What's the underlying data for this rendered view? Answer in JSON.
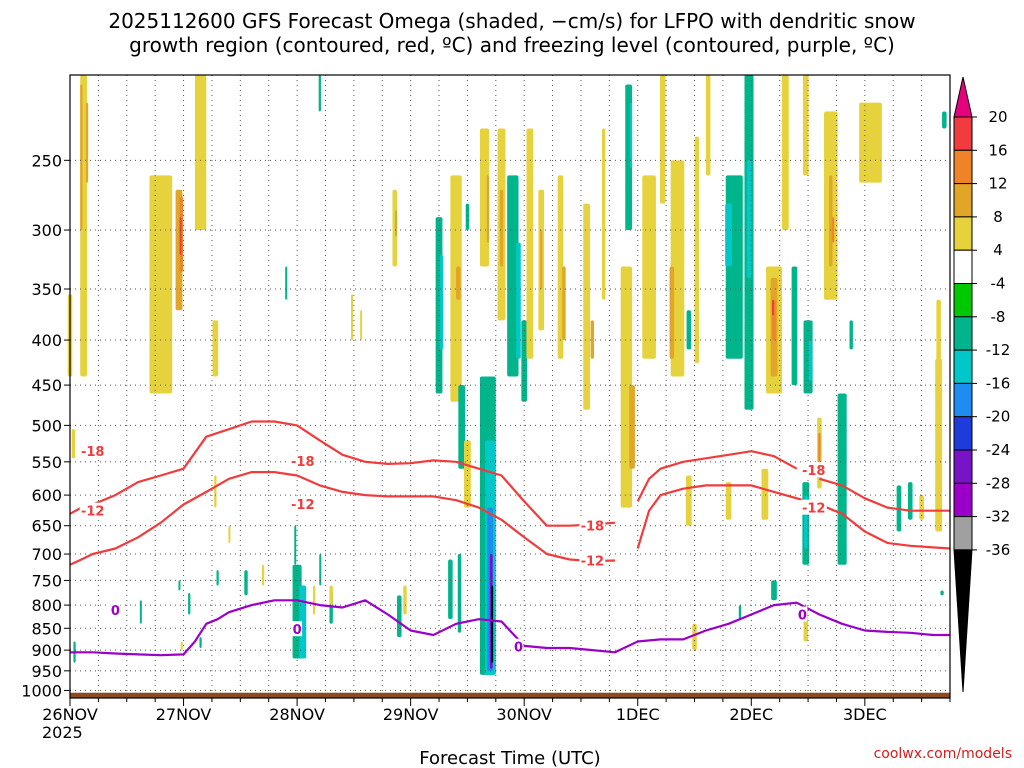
{
  "chart_data": {
    "type": "heatmap",
    "title_line1": "2025112600 GFS Forecast Omega (shaded, −cm/s) for LFPO with dendritic snow",
    "title_line2": "growth region (contoured, red, ºC) and freezing level (contoured, purple, ºC)",
    "xlabel": "Forecast Time (UTC)",
    "x_ticks": [
      "26NOV",
      "27NOV",
      "28NOV",
      "29NOV",
      "30NOV",
      "1DEC",
      "2DEC",
      "3DEC"
    ],
    "x_year_label": "2025",
    "x_range_days": [
      0,
      7.75
    ],
    "y_ticks": [
      250,
      300,
      350,
      400,
      450,
      500,
      550,
      600,
      650,
      700,
      750,
      800,
      850,
      900,
      950,
      1000
    ],
    "y_range_hpa": [
      1020,
      200
    ],
    "colorbar": {
      "labels": [
        "20",
        "16",
        "12",
        "8",
        "4",
        "-4",
        "-8",
        "-12",
        "-16",
        "-20",
        "-24",
        "-28",
        "-32",
        "-36"
      ],
      "levels": [
        20,
        16,
        12,
        8,
        4,
        -4,
        -8,
        -12,
        -16,
        -20,
        -24,
        -28,
        -32,
        -36
      ],
      "colors": [
        "#e6007e",
        "#f03c3c",
        "#f08228",
        "#e1a528",
        "#e6d23c",
        "#ffffff",
        "#00c800",
        "#00b48c",
        "#00c8c8",
        "#1e8cf0",
        "#1e3cdc",
        "#7814c8",
        "#9b00c8",
        "#a0a0a0",
        "#000000"
      ]
    },
    "series": [
      {
        "name": "-18",
        "color": "#f03c3c",
        "x": [
          0,
          0.1,
          0.2,
          0.4,
          0.6,
          0.8,
          1.0,
          1.2,
          1.4,
          1.6,
          1.8,
          2.0,
          2.2,
          2.4,
          2.6,
          2.8,
          3.0,
          3.2,
          3.4,
          3.6,
          3.8,
          4.0,
          4.2,
          4.4,
          4.6,
          4.8
        ],
        "y": [
          630,
          620,
          615,
          600,
          580,
          570,
          560,
          515,
          505,
          495,
          495,
          500,
          520,
          540,
          550,
          553,
          552,
          548,
          550,
          560,
          570,
          610,
          650,
          650,
          648,
          645
        ]
      },
      {
        "name": "-18",
        "color": "#f03c3c",
        "x": [
          5.0,
          5.1,
          5.2,
          5.4,
          5.6,
          5.8,
          6.0,
          6.2,
          6.4
        ],
        "y": [
          610,
          575,
          560,
          550,
          545,
          540,
          535,
          542,
          560
        ]
      },
      {
        "name": "-18",
        "color": "#f03c3c",
        "x": [
          6.6,
          6.8,
          7.0,
          7.2,
          7.4,
          7.6,
          7.75
        ],
        "y": [
          575,
          585,
          605,
          620,
          625,
          625,
          625
        ]
      },
      {
        "name": "-12",
        "color": "#f03c3c",
        "x": [
          0,
          0.1,
          0.2,
          0.4,
          0.6,
          0.8,
          1.0,
          1.2,
          1.4,
          1.6,
          1.8,
          2.0,
          2.2,
          2.4,
          2.6,
          2.8,
          3.0,
          3.2,
          3.4,
          3.6,
          3.8,
          4.0,
          4.2,
          4.4,
          4.6,
          4.8
        ],
        "y": [
          720,
          710,
          700,
          690,
          670,
          645,
          615,
          595,
          575,
          565,
          565,
          570,
          585,
          595,
          600,
          602,
          602,
          602,
          608,
          620,
          640,
          670,
          700,
          710,
          713,
          712
        ]
      },
      {
        "name": "-12",
        "color": "#f03c3c",
        "x": [
          5.0,
          5.1,
          5.2,
          5.4,
          5.6,
          5.8,
          6.0,
          6.2,
          6.4,
          6.6,
          6.8,
          7.0,
          7.2,
          7.4,
          7.6,
          7.75
        ],
        "y": [
          690,
          625,
          600,
          590,
          585,
          585,
          585,
          595,
          605,
          615,
          630,
          660,
          680,
          685,
          688,
          690
        ]
      },
      {
        "name": "0",
        "color": "#9b00c8",
        "x": [
          0,
          0.2,
          0.4,
          0.6,
          0.8,
          1.0,
          1.1,
          1.2,
          1.3,
          1.4,
          1.6,
          1.8,
          2.0,
          2.2,
          2.4,
          2.6,
          2.8,
          3.0,
          3.2,
          3.4,
          3.6,
          3.8,
          4.0,
          4.2,
          4.4,
          4.6,
          4.8,
          5.0,
          5.2,
          5.4,
          5.6,
          5.8,
          6.0,
          6.2,
          6.4,
          6.6,
          6.8,
          7.0,
          7.2,
          7.4,
          7.6,
          7.75
        ],
        "y": [
          905,
          905,
          908,
          910,
          912,
          910,
          880,
          840,
          830,
          815,
          800,
          790,
          790,
          800,
          805,
          790,
          820,
          855,
          865,
          840,
          830,
          835,
          890,
          895,
          895,
          900,
          905,
          880,
          875,
          875,
          855,
          840,
          820,
          800,
          795,
          820,
          840,
          855,
          858,
          860,
          865,
          865
        ]
      }
    ],
    "contour_labels": [
      {
        "text": "-18",
        "x": 0.2,
        "y": 535
      },
      {
        "text": "-18",
        "x": 2.05,
        "y": 549
      },
      {
        "text": "-18",
        "x": 4.6,
        "y": 650
      },
      {
        "text": "-18",
        "x": 6.55,
        "y": 562
      },
      {
        "text": "-12",
        "x": 0.2,
        "y": 625
      },
      {
        "text": "-12",
        "x": 2.05,
        "y": 614
      },
      {
        "text": "-12",
        "x": 4.6,
        "y": 712
      },
      {
        "text": "-12",
        "x": 6.55,
        "y": 620
      },
      {
        "text": "0",
        "x": 0.4,
        "y": 810
      },
      {
        "text": "0",
        "x": 2.0,
        "y": 852
      },
      {
        "text": "0",
        "x": 3.95,
        "y": 892
      },
      {
        "text": "0",
        "x": 6.45,
        "y": 820
      }
    ],
    "omega_blobs": [
      {
        "x": 0.12,
        "y0": 200,
        "y1": 440,
        "w": 0.06,
        "level": 4
      },
      {
        "x": 0.0,
        "y0": 355,
        "y1": 440,
        "w": 0.04,
        "level": 4
      },
      {
        "x": 0.03,
        "y0": 505,
        "y1": 545,
        "w": 0.03,
        "level": 4
      },
      {
        "x": 0.1,
        "y0": 205,
        "y1": 300,
        "w": 0.02,
        "level": 8
      },
      {
        "x": 0.15,
        "y0": 215,
        "y1": 265,
        "w": 0.02,
        "level": 8
      },
      {
        "x": 0.8,
        "y0": 260,
        "y1": 460,
        "w": 0.2,
        "level": 4
      },
      {
        "x": 0.96,
        "y0": 270,
        "y1": 370,
        "w": 0.06,
        "level": 8
      },
      {
        "x": 0.98,
        "y0": 275,
        "y1": 335,
        "w": 0.03,
        "level": 12
      },
      {
        "x": 0.97,
        "y0": 290,
        "y1": 320,
        "w": 0.01,
        "level": 16
      },
      {
        "x": 1.15,
        "y0": 200,
        "y1": 300,
        "w": 0.1,
        "level": 4
      },
      {
        "x": 1.28,
        "y0": 380,
        "y1": 440,
        "w": 0.05,
        "level": 4
      },
      {
        "x": 1.28,
        "y0": 570,
        "y1": 620,
        "w": 0.02,
        "level": 4
      },
      {
        "x": 1.3,
        "y0": 730,
        "y1": 760,
        "w": 0.02,
        "level": -8
      },
      {
        "x": 1.4,
        "y0": 650,
        "y1": 680,
        "w": 0.01,
        "level": 4
      },
      {
        "x": 1.55,
        "y0": 730,
        "y1": 780,
        "w": 0.03,
        "level": -8
      },
      {
        "x": 1.7,
        "y0": 720,
        "y1": 760,
        "w": 0.02,
        "level": 4
      },
      {
        "x": 2.0,
        "y0": 720,
        "y1": 920,
        "w": 0.08,
        "level": -8
      },
      {
        "x": 2.05,
        "y0": 760,
        "y1": 920,
        "w": 0.06,
        "level": -12
      },
      {
        "x": 1.98,
        "y0": 650,
        "y1": 720,
        "w": 0.01,
        "level": -8
      },
      {
        "x": 2.15,
        "y0": 760,
        "y1": 820,
        "w": 0.02,
        "level": 4
      },
      {
        "x": 2.2,
        "y0": 700,
        "y1": 760,
        "w": 0.01,
        "level": -8
      },
      {
        "x": 2.3,
        "y0": 770,
        "y1": 840,
        "w": 0.03,
        "level": -8
      },
      {
        "x": 2.3,
        "y0": 760,
        "y1": 800,
        "w": 0.03,
        "level": 4
      },
      {
        "x": 2.86,
        "y0": 270,
        "y1": 330,
        "w": 0.04,
        "level": 4
      },
      {
        "x": 2.87,
        "y0": 285,
        "y1": 305,
        "w": 0.015,
        "level": 8
      },
      {
        "x": 2.9,
        "y0": 780,
        "y1": 870,
        "w": 0.04,
        "level": -8
      },
      {
        "x": 2.95,
        "y0": 760,
        "y1": 820,
        "w": 0.03,
        "level": 4
      },
      {
        "x": 3.25,
        "y0": 290,
        "y1": 460,
        "w": 0.06,
        "level": -8
      },
      {
        "x": 3.27,
        "y0": 320,
        "y1": 410,
        "w": 0.03,
        "level": -12
      },
      {
        "x": 3.4,
        "y0": 260,
        "y1": 470,
        "w": 0.1,
        "level": 4
      },
      {
        "x": 3.42,
        "y0": 330,
        "y1": 360,
        "w": 0.04,
        "level": 8
      },
      {
        "x": 3.45,
        "y0": 450,
        "y1": 560,
        "w": 0.06,
        "level": -8
      },
      {
        "x": 3.5,
        "y0": 520,
        "y1": 620,
        "w": 0.06,
        "level": 4
      },
      {
        "x": 3.5,
        "y0": 280,
        "y1": 300,
        "w": 0.03,
        "level": -8
      },
      {
        "x": 3.35,
        "y0": 710,
        "y1": 830,
        "w": 0.04,
        "level": -8
      },
      {
        "x": 3.43,
        "y0": 700,
        "y1": 860,
        "w": 0.03,
        "level": -8
      },
      {
        "x": 3.65,
        "y0": 230,
        "y1": 330,
        "w": 0.08,
        "level": 4
      },
      {
        "x": 3.68,
        "y0": 260,
        "y1": 310,
        "w": 0.02,
        "level": 8
      },
      {
        "x": 3.68,
        "y0": 440,
        "y1": 960,
        "w": 0.14,
        "level": -8
      },
      {
        "x": 3.7,
        "y0": 520,
        "y1": 960,
        "w": 0.09,
        "level": -12
      },
      {
        "x": 3.7,
        "y0": 620,
        "y1": 950,
        "w": 0.05,
        "level": -16
      },
      {
        "x": 3.71,
        "y0": 700,
        "y1": 945,
        "w": 0.025,
        "level": -24
      },
      {
        "x": 3.715,
        "y0": 760,
        "y1": 930,
        "w": 0.012,
        "level": -36
      },
      {
        "x": 3.8,
        "y0": 230,
        "y1": 380,
        "w": 0.07,
        "level": 4
      },
      {
        "x": 3.8,
        "y0": 270,
        "y1": 330,
        "w": 0.03,
        "level": 8
      },
      {
        "x": 3.9,
        "y0": 260,
        "y1": 440,
        "w": 0.1,
        "level": -8
      },
      {
        "x": 3.95,
        "y0": 310,
        "y1": 420,
        "w": 0.04,
        "level": -12
      },
      {
        "x": 4.0,
        "y0": 380,
        "y1": 470,
        "w": 0.05,
        "level": -8
      },
      {
        "x": 4.05,
        "y0": 230,
        "y1": 420,
        "w": 0.06,
        "level": 4
      },
      {
        "x": 4.15,
        "y0": 270,
        "y1": 390,
        "w": 0.05,
        "level": 4
      },
      {
        "x": 4.15,
        "y0": 300,
        "y1": 350,
        "w": 0.02,
        "level": 8
      },
      {
        "x": 4.32,
        "y0": 260,
        "y1": 420,
        "w": 0.05,
        "level": 4
      },
      {
        "x": 4.35,
        "y0": 330,
        "y1": 400,
        "w": 0.03,
        "level": 8
      },
      {
        "x": 4.55,
        "y0": 280,
        "y1": 480,
        "w": 0.06,
        "level": 4
      },
      {
        "x": 4.6,
        "y0": 380,
        "y1": 420,
        "w": 0.03,
        "level": 8
      },
      {
        "x": 4.7,
        "y0": 230,
        "y1": 360,
        "w": 0.03,
        "level": 4
      },
      {
        "x": 4.9,
        "y0": 330,
        "y1": 620,
        "w": 0.1,
        "level": 4
      },
      {
        "x": 4.95,
        "y0": 450,
        "y1": 560,
        "w": 0.05,
        "level": 8
      },
      {
        "x": 4.92,
        "y0": 205,
        "y1": 300,
        "w": 0.06,
        "level": -8
      },
      {
        "x": 4.94,
        "y0": 215,
        "y1": 255,
        "w": 0.02,
        "level": -12
      },
      {
        "x": 5.1,
        "y0": 260,
        "y1": 420,
        "w": 0.12,
        "level": 4
      },
      {
        "x": 5.22,
        "y0": 200,
        "y1": 280,
        "w": 0.05,
        "level": 4
      },
      {
        "x": 5.35,
        "y0": 250,
        "y1": 440,
        "w": 0.12,
        "level": 4
      },
      {
        "x": 5.3,
        "y0": 330,
        "y1": 420,
        "w": 0.04,
        "level": 8
      },
      {
        "x": 5.45,
        "y0": 370,
        "y1": 410,
        "w": 0.04,
        "level": -8
      },
      {
        "x": 5.45,
        "y0": 570,
        "y1": 650,
        "w": 0.05,
        "level": 4
      },
      {
        "x": 5.5,
        "y0": 840,
        "y1": 900,
        "w": 0.04,
        "level": 4
      },
      {
        "x": 5.52,
        "y0": 235,
        "y1": 425,
        "w": 0.04,
        "level": 4
      },
      {
        "x": 5.62,
        "y0": 200,
        "y1": 260,
        "w": 0.04,
        "level": 4
      },
      {
        "x": 5.85,
        "y0": 260,
        "y1": 420,
        "w": 0.15,
        "level": -8
      },
      {
        "x": 5.8,
        "y0": 280,
        "y1": 330,
        "w": 0.06,
        "level": -12
      },
      {
        "x": 5.8,
        "y0": 580,
        "y1": 640,
        "w": 0.05,
        "level": 4
      },
      {
        "x": 5.98,
        "y0": 200,
        "y1": 480,
        "w": 0.08,
        "level": -8
      },
      {
        "x": 5.98,
        "y0": 250,
        "y1": 340,
        "w": 0.04,
        "level": -12
      },
      {
        "x": 6.2,
        "y0": 330,
        "y1": 460,
        "w": 0.14,
        "level": 4
      },
      {
        "x": 6.2,
        "y0": 340,
        "y1": 440,
        "w": 0.06,
        "level": 8
      },
      {
        "x": 6.2,
        "y0": 360,
        "y1": 400,
        "w": 0.03,
        "level": 12
      },
      {
        "x": 6.19,
        "y0": 360,
        "y1": 375,
        "w": 0.015,
        "level": 16
      },
      {
        "x": 6.12,
        "y0": 560,
        "y1": 640,
        "w": 0.06,
        "level": 4
      },
      {
        "x": 6.2,
        "y0": 750,
        "y1": 790,
        "w": 0.05,
        "level": -8
      },
      {
        "x": 6.3,
        "y0": 200,
        "y1": 300,
        "w": 0.06,
        "level": 4
      },
      {
        "x": 6.38,
        "y0": 330,
        "y1": 450,
        "w": 0.05,
        "level": -8
      },
      {
        "x": 6.48,
        "y0": 200,
        "y1": 260,
        "w": 0.05,
        "level": 4
      },
      {
        "x": 6.5,
        "y0": 380,
        "y1": 460,
        "w": 0.08,
        "level": -8
      },
      {
        "x": 6.52,
        "y0": 400,
        "y1": 445,
        "w": 0.03,
        "level": -12
      },
      {
        "x": 6.48,
        "y0": 580,
        "y1": 720,
        "w": 0.06,
        "level": -8
      },
      {
        "x": 6.48,
        "y0": 600,
        "y1": 690,
        "w": 0.03,
        "level": -12
      },
      {
        "x": 6.48,
        "y0": 800,
        "y1": 880,
        "w": 0.04,
        "level": 4
      },
      {
        "x": 6.6,
        "y0": 490,
        "y1": 590,
        "w": 0.04,
        "level": 4
      },
      {
        "x": 6.6,
        "y0": 510,
        "y1": 570,
        "w": 0.02,
        "level": 12
      },
      {
        "x": 6.7,
        "y0": 220,
        "y1": 360,
        "w": 0.12,
        "level": 4
      },
      {
        "x": 6.7,
        "y0": 260,
        "y1": 330,
        "w": 0.03,
        "level": 8
      },
      {
        "x": 6.72,
        "y0": 290,
        "y1": 310,
        "w": 0.015,
        "level": 12
      },
      {
        "x": 6.8,
        "y0": 460,
        "y1": 720,
        "w": 0.08,
        "level": -8
      },
      {
        "x": 6.88,
        "y0": 380,
        "y1": 410,
        "w": 0.03,
        "level": -8
      },
      {
        "x": 7.05,
        "y0": 215,
        "y1": 265,
        "w": 0.2,
        "level": 4
      },
      {
        "x": 7.3,
        "y0": 585,
        "y1": 660,
        "w": 0.04,
        "level": -8
      },
      {
        "x": 7.4,
        "y0": 580,
        "y1": 640,
        "w": 0.04,
        "level": -8
      },
      {
        "x": 7.5,
        "y0": 600,
        "y1": 640,
        "w": 0.04,
        "level": 4
      },
      {
        "x": 7.65,
        "y0": 420,
        "y1": 660,
        "w": 0.06,
        "level": 4
      },
      {
        "x": 7.65,
        "y0": 360,
        "y1": 500,
        "w": 0.04,
        "level": 4
      },
      {
        "x": 7.7,
        "y0": 220,
        "y1": 230,
        "w": 0.04,
        "level": -8
      },
      {
        "x": 7.68,
        "y0": 770,
        "y1": 780,
        "w": 0.03,
        "level": -8
      },
      {
        "x": 0.62,
        "y0": 790,
        "y1": 840,
        "w": 0.01,
        "level": -8
      },
      {
        "x": 0.04,
        "y0": 880,
        "y1": 930,
        "w": 0.02,
        "level": -8
      },
      {
        "x": 1.05,
        "y0": 775,
        "y1": 820,
        "w": 0.02,
        "level": -8
      },
      {
        "x": 1.15,
        "y0": 870,
        "y1": 895,
        "w": 0.02,
        "level": -8
      },
      {
        "x": 5.9,
        "y0": 800,
        "y1": 830,
        "w": 0.02,
        "level": -8
      },
      {
        "x": 0.98,
        "y0": 880,
        "y1": 900,
        "w": 0.01,
        "level": 4
      },
      {
        "x": 0.96,
        "y0": 750,
        "y1": 770,
        "w": 0.01,
        "level": -8
      },
      {
        "x": 2.2,
        "y0": 200,
        "y1": 220,
        "w": 0.02,
        "level": -8
      },
      {
        "x": 2.48,
        "y0": 355,
        "y1": 400,
        "w": 0.01,
        "level": 4
      },
      {
        "x": 2.56,
        "y0": 370,
        "y1": 400,
        "w": 0.01,
        "level": 4
      },
      {
        "x": 1.9,
        "y0": 330,
        "y1": 360,
        "w": 0.01,
        "level": -8
      }
    ]
  },
  "credit": "coolwx.com/models"
}
